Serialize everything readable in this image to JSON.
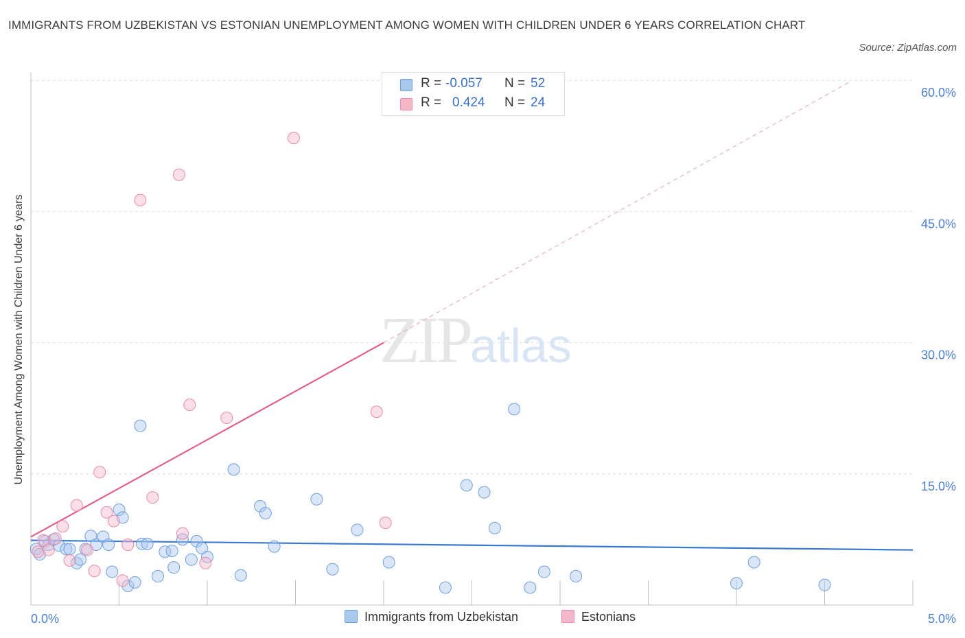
{
  "title": "IMMIGRANTS FROM UZBEKISTAN VS ESTONIAN UNEMPLOYMENT AMONG WOMEN WITH CHILDREN UNDER 6 YEARS CORRELATION CHART",
  "source": "Source: ZipAtlas.com",
  "watermark": {
    "zip": "ZIP",
    "atlas": "atlas"
  },
  "stats": [
    {
      "r_label": "R =",
      "r_value": "-0.057",
      "n_label": "N =",
      "n_value": "52",
      "color": "#a9c8f0"
    },
    {
      "r_label": "R =",
      "r_value": "0.424",
      "n_label": "N =",
      "n_value": "24",
      "color": "#f5b8cb"
    }
  ],
  "chart_data": {
    "type": "scatter",
    "title": "IMMIGRANTS FROM UZBEKISTAN VS ESTONIAN UNEMPLOYMENT AMONG WOMEN WITH CHILDREN UNDER 6 YEARS CORRELATION CHART",
    "xlabel": "",
    "ylabel": "Unemployment Among Women with Children Under 6 years",
    "xlim": [
      0,
      5
    ],
    "ylim": [
      0,
      60
    ],
    "x_tick_labels": [
      "0.0%",
      "5.0%"
    ],
    "y_ticks": [
      15,
      30,
      45,
      60
    ],
    "y_tick_labels": [
      "15.0%",
      "30.0%",
      "45.0%",
      "60.0%"
    ],
    "grid": true,
    "legend_position": "bottom-center",
    "series": [
      {
        "name": "Immigrants from Uzbekistan",
        "color": "#a9c8f0",
        "stroke": "#6f9fdd",
        "trend": {
          "x": [
            0,
            5
          ],
          "y": [
            7.4,
            6.3
          ],
          "color": "#3a78d0"
        },
        "points": [
          [
            0.03,
            6.4
          ],
          [
            0.05,
            5.8
          ],
          [
            0.08,
            7.3
          ],
          [
            0.1,
            6.9
          ],
          [
            0.13,
            7.5
          ],
          [
            0.16,
            6.8
          ],
          [
            0.2,
            6.4
          ],
          [
            0.22,
            6.4
          ],
          [
            0.26,
            4.8
          ],
          [
            0.28,
            5.2
          ],
          [
            0.31,
            6.4
          ],
          [
            0.34,
            7.9
          ],
          [
            0.37,
            6.9
          ],
          [
            0.41,
            7.8
          ],
          [
            0.44,
            6.9
          ],
          [
            0.46,
            3.8
          ],
          [
            0.5,
            10.9
          ],
          [
            0.52,
            10.0
          ],
          [
            0.55,
            2.2
          ],
          [
            0.59,
            2.6
          ],
          [
            0.62,
            20.5
          ],
          [
            0.63,
            7.0
          ],
          [
            0.66,
            7.0
          ],
          [
            0.72,
            3.3
          ],
          [
            0.76,
            6.1
          ],
          [
            0.8,
            6.2
          ],
          [
            0.81,
            4.3
          ],
          [
            0.86,
            7.5
          ],
          [
            0.91,
            5.2
          ],
          [
            0.94,
            7.3
          ],
          [
            0.97,
            6.5
          ],
          [
            1.0,
            5.5
          ],
          [
            1.15,
            15.5
          ],
          [
            1.19,
            3.4
          ],
          [
            1.3,
            11.3
          ],
          [
            1.33,
            10.5
          ],
          [
            1.38,
            6.7
          ],
          [
            1.62,
            12.1
          ],
          [
            1.71,
            4.1
          ],
          [
            1.85,
            8.6
          ],
          [
            2.03,
            4.9
          ],
          [
            2.35,
            2.0
          ],
          [
            2.47,
            13.7
          ],
          [
            2.57,
            12.9
          ],
          [
            2.63,
            8.8
          ],
          [
            2.74,
            22.4
          ],
          [
            2.83,
            2.0
          ],
          [
            2.91,
            3.8
          ],
          [
            3.09,
            3.3
          ],
          [
            4.0,
            2.5
          ],
          [
            4.1,
            4.9
          ],
          [
            4.5,
            2.3
          ]
        ]
      },
      {
        "name": "Estonians",
        "color": "#f5b8cb",
        "stroke": "#e98aa8",
        "trend": {
          "x": [
            0,
            2.0
          ],
          "y": [
            7.8,
            30.0
          ],
          "color": "#e0608a"
        },
        "trend_ext": {
          "x": [
            2.0,
            4.65
          ],
          "y": [
            30.0,
            59.9
          ],
          "color": "#e8a0b6"
        },
        "points": [
          [
            0.04,
            6.1
          ],
          [
            0.07,
            7.4
          ],
          [
            0.1,
            6.3
          ],
          [
            0.14,
            7.6
          ],
          [
            0.18,
            9.0
          ],
          [
            0.22,
            5.1
          ],
          [
            0.26,
            11.4
          ],
          [
            0.32,
            6.3
          ],
          [
            0.36,
            3.9
          ],
          [
            0.39,
            15.2
          ],
          [
            0.43,
            10.6
          ],
          [
            0.47,
            9.6
          ],
          [
            0.52,
            2.8
          ],
          [
            0.55,
            6.9
          ],
          [
            0.62,
            46.3
          ],
          [
            0.69,
            12.3
          ],
          [
            0.84,
            49.2
          ],
          [
            0.86,
            8.2
          ],
          [
            0.9,
            22.9
          ],
          [
            0.99,
            4.8
          ],
          [
            1.11,
            21.4
          ],
          [
            1.49,
            53.4
          ],
          [
            1.96,
            22.1
          ],
          [
            2.01,
            9.4
          ]
        ]
      }
    ]
  }
}
